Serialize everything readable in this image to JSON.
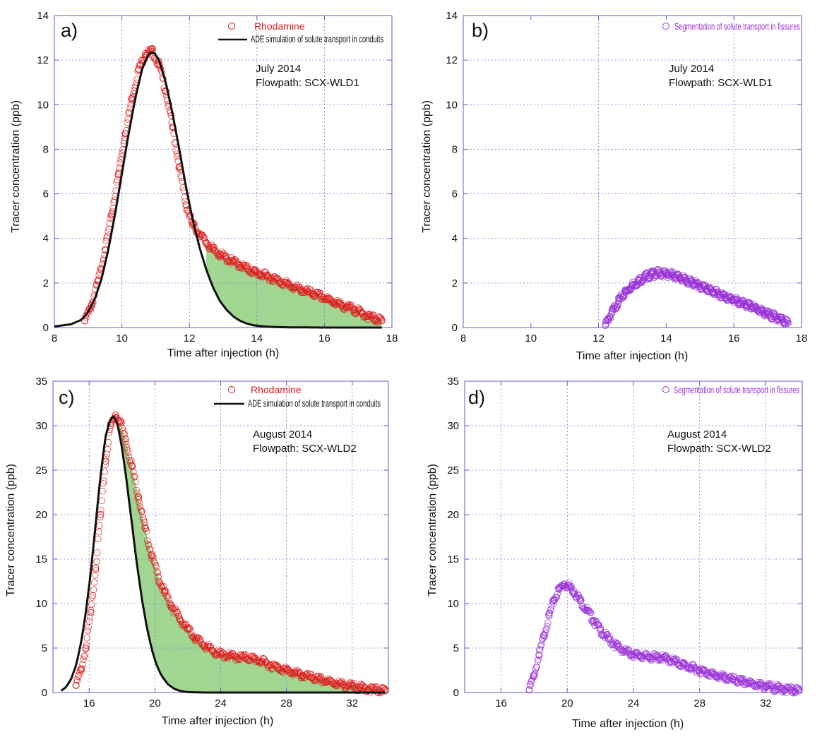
{
  "figure": {
    "width": 1164,
    "height": 1044
  },
  "chart_data": [
    {
      "id": "a",
      "panel_label": "a)",
      "type": "scatter",
      "xlabel": "Time after injection (h)",
      "ylabel": "Tracer concentration (ppb)",
      "xlim": [
        8,
        18
      ],
      "ylim": [
        0,
        14
      ],
      "xticks": [
        8,
        10,
        12,
        14,
        16,
        18
      ],
      "yticks": [
        0,
        2,
        4,
        6,
        8,
        10,
        12,
        14
      ],
      "xgrid": [
        10,
        12,
        14,
        16
      ],
      "ygrid": [
        2,
        4,
        6,
        8,
        10,
        12
      ],
      "grid": true,
      "annotation": [
        "July 2014",
        "Flowpath: SCX-WLD1"
      ],
      "legend_position": "top-right",
      "series": [
        {
          "name": "Rhodamine",
          "kind": "markers",
          "marker": "circle",
          "color": "#dd1c1c",
          "x": [
            8.9,
            9.1,
            9.3,
            9.5,
            9.7,
            9.9,
            10.1,
            10.3,
            10.5,
            10.7,
            10.9,
            11.1,
            11.3,
            11.5,
            11.7,
            11.9,
            12.1,
            12.3,
            12.5,
            12.7,
            12.9,
            13.1,
            13.3,
            13.5,
            13.7,
            13.9,
            14.1,
            14.3,
            14.5,
            14.7,
            14.9,
            15.1,
            15.3,
            15.5,
            15.7,
            15.9,
            16.1,
            16.3,
            16.5,
            16.7,
            16.9,
            17.1,
            17.3,
            17.5,
            17.7
          ],
          "y": [
            0.3,
            1.0,
            2.1,
            3.5,
            5.1,
            6.9,
            8.7,
            10.3,
            11.6,
            12.3,
            12.4,
            11.8,
            10.6,
            9.0,
            7.2,
            5.5,
            4.6,
            4.2,
            3.8,
            3.5,
            3.3,
            3.1,
            2.95,
            2.8,
            2.65,
            2.5,
            2.4,
            2.3,
            2.2,
            2.05,
            1.95,
            1.8,
            1.7,
            1.6,
            1.5,
            1.4,
            1.25,
            1.15,
            1.0,
            0.9,
            0.8,
            0.65,
            0.5,
            0.4,
            0.3
          ]
        },
        {
          "name": "ADE simulation of solute transport in conduits",
          "kind": "line",
          "color": "#111111",
          "x": [
            8.0,
            8.5,
            8.8,
            9.0,
            9.2,
            9.4,
            9.6,
            9.8,
            10.0,
            10.2,
            10.4,
            10.6,
            10.8,
            10.95,
            11.1,
            11.3,
            11.5,
            11.7,
            11.9,
            12.1,
            12.3,
            12.5,
            12.7,
            12.9,
            13.1,
            13.3,
            13.5,
            13.7,
            13.9,
            14.2,
            14.6,
            15.0,
            16.0,
            17.0,
            17.7
          ],
          "y": [
            0.05,
            0.15,
            0.35,
            0.7,
            1.3,
            2.2,
            3.5,
            5.1,
            6.9,
            8.7,
            10.3,
            11.6,
            12.3,
            12.35,
            12.0,
            11.0,
            9.6,
            8.0,
            6.3,
            4.8,
            3.6,
            2.6,
            1.8,
            1.2,
            0.8,
            0.5,
            0.3,
            0.18,
            0.1,
            0.05,
            0.02,
            0.01,
            0.0,
            0.0,
            0.0
          ]
        }
      ],
      "shaded_region": {
        "between": [
          "Rhodamine",
          "ADE simulation of solute transport in conduits"
        ],
        "x_from": 12.5,
        "x_to": 17.7,
        "color": "#88cc77"
      }
    },
    {
      "id": "b",
      "panel_label": "b)",
      "type": "scatter",
      "xlabel": "Time after injection (h)",
      "ylabel": "Tracer concentration (ppb)",
      "xlim": [
        8,
        18
      ],
      "ylim": [
        0,
        14
      ],
      "xticks": [
        8,
        10,
        12,
        14,
        16,
        18
      ],
      "yticks": [
        0,
        2,
        4,
        6,
        8,
        10,
        12,
        14
      ],
      "xgrid": [
        12,
        16
      ],
      "ygrid": [
        2,
        4,
        6,
        8,
        10,
        12
      ],
      "grid": true,
      "annotation": [
        "July 2014",
        "Flowpath: SCX-WLD1"
      ],
      "legend_position": "top-right",
      "series": [
        {
          "name": "Segmentation of solute transport in fissures",
          "kind": "markers",
          "marker": "circle",
          "color": "#9a33d6",
          "x": [
            12.2,
            12.4,
            12.6,
            12.8,
            13.0,
            13.2,
            13.4,
            13.6,
            13.8,
            14.0,
            14.2,
            14.4,
            14.6,
            14.8,
            15.0,
            15.2,
            15.4,
            15.6,
            15.8,
            16.0,
            16.2,
            16.4,
            16.6,
            16.8,
            17.0,
            17.2,
            17.4,
            17.6
          ],
          "y": [
            0.1,
            0.7,
            1.2,
            1.6,
            1.9,
            2.1,
            2.3,
            2.4,
            2.45,
            2.4,
            2.35,
            2.25,
            2.1,
            2.0,
            1.85,
            1.75,
            1.6,
            1.5,
            1.35,
            1.25,
            1.1,
            1.0,
            0.9,
            0.75,
            0.6,
            0.5,
            0.35,
            0.2
          ]
        }
      ]
    },
    {
      "id": "c",
      "panel_label": "c)",
      "type": "scatter",
      "xlabel": "Time after injection (h)",
      "ylabel": "Tracer concentration (ppb)",
      "xlim": [
        13.8,
        34.2
      ],
      "ylim": [
        0,
        35
      ],
      "xticks": [
        16,
        20,
        24,
        28,
        32
      ],
      "yticks": [
        0,
        5,
        10,
        15,
        20,
        25,
        30,
        35
      ],
      "xgrid": [
        16,
        20,
        24,
        28,
        32
      ],
      "ygrid": [
        5,
        10,
        15,
        20,
        25,
        30
      ],
      "grid": true,
      "annotation": [
        "August 2014",
        "Flowpath: SCX-WLD2"
      ],
      "legend_position": "top-right",
      "series": [
        {
          "name": "Rhodamine",
          "kind": "markers",
          "marker": "circle",
          "color": "#dd1c1c",
          "x": [
            15.2,
            15.5,
            15.8,
            16.1,
            16.4,
            16.7,
            17.0,
            17.3,
            17.6,
            17.9,
            18.2,
            18.6,
            19.0,
            19.4,
            19.8,
            20.2,
            20.6,
            21.0,
            21.5,
            22.0,
            22.5,
            23.0,
            23.5,
            24.0,
            24.5,
            25.0,
            25.5,
            26.0,
            26.5,
            27.0,
            27.5,
            28.0,
            28.5,
            29.0,
            29.5,
            30.0,
            30.5,
            31.0,
            31.5,
            32.0,
            32.5,
            33.0,
            33.5,
            34.0
          ],
          "y": [
            0.8,
            2.5,
            5.0,
            9.0,
            14.0,
            20.0,
            26.0,
            30.0,
            31.2,
            30.5,
            28.5,
            25.5,
            22.0,
            18.5,
            15.5,
            13.0,
            11.2,
            9.8,
            8.3,
            7.1,
            6.1,
            5.3,
            4.7,
            4.3,
            4.1,
            4.0,
            3.95,
            3.8,
            3.5,
            3.1,
            2.8,
            2.5,
            2.2,
            1.9,
            1.7,
            1.45,
            1.25,
            1.05,
            0.85,
            0.7,
            0.55,
            0.4,
            0.3,
            0.2
          ]
        },
        {
          "name": "ADE simulation of solute transport in conduits",
          "kind": "line",
          "color": "#111111",
          "x": [
            14.3,
            14.6,
            14.9,
            15.2,
            15.5,
            15.8,
            16.1,
            16.4,
            16.7,
            17.0,
            17.3,
            17.5,
            17.7,
            18.0,
            18.3,
            18.6,
            18.9,
            19.2,
            19.5,
            19.8,
            20.1,
            20.4,
            20.8,
            21.2,
            21.6,
            22.0,
            23.0,
            25.0,
            28.0,
            31.0,
            34.0
          ],
          "y": [
            0.2,
            0.6,
            1.5,
            3.0,
            5.5,
            9.0,
            13.5,
            19.0,
            24.5,
            28.8,
            30.8,
            31.0,
            30.4,
            27.5,
            23.5,
            19.0,
            14.5,
            10.6,
            7.4,
            4.9,
            3.1,
            1.9,
            0.9,
            0.4,
            0.15,
            0.05,
            0.0,
            0.0,
            0.0,
            0.0,
            0.0
          ]
        }
      ],
      "shaded_region": {
        "between": [
          "Rhodamine",
          "ADE simulation of solute transport in conduits"
        ],
        "x_from": 17.9,
        "x_to": 34.0,
        "color": "#88cc77"
      }
    },
    {
      "id": "d",
      "panel_label": "d)",
      "type": "scatter",
      "xlabel": "Time after injection (h)",
      "ylabel": "Tracer concentration (ppb)",
      "xlim": [
        13.8,
        34.2
      ],
      "ylim": [
        0,
        35
      ],
      "xticks": [
        16,
        20,
        24,
        28,
        32
      ],
      "yticks": [
        0,
        5,
        10,
        15,
        20,
        25,
        30,
        35
      ],
      "xgrid": [
        16,
        20,
        24,
        28,
        32
      ],
      "ygrid": [
        5,
        10,
        15,
        20,
        25,
        30
      ],
      "grid": true,
      "annotation": [
        "August 2014",
        "Flowpath: SCX-WLD2"
      ],
      "legend_position": "top-right",
      "series": [
        {
          "name": "Segmentation of solute transport in fissures",
          "kind": "markers",
          "marker": "circle",
          "color": "#9a33d6",
          "x": [
            17.7,
            18.0,
            18.3,
            18.6,
            18.9,
            19.2,
            19.5,
            19.8,
            20.1,
            20.4,
            20.8,
            21.2,
            21.6,
            22.0,
            22.5,
            23.0,
            23.5,
            24.0,
            24.5,
            25.0,
            25.5,
            26.0,
            26.5,
            27.0,
            27.5,
            28.0,
            28.5,
            29.0,
            29.5,
            30.0,
            30.5,
            31.0,
            31.5,
            32.0,
            32.5,
            33.0,
            33.5,
            34.0
          ],
          "y": [
            0.3,
            2.0,
            4.2,
            6.5,
            8.6,
            10.4,
            11.6,
            12.2,
            12.0,
            11.4,
            10.3,
            9.2,
            8.1,
            7.0,
            6.0,
            5.2,
            4.6,
            4.3,
            4.1,
            4.0,
            3.95,
            3.8,
            3.5,
            3.1,
            2.8,
            2.5,
            2.2,
            1.9,
            1.7,
            1.45,
            1.25,
            1.05,
            0.85,
            0.7,
            0.55,
            0.4,
            0.3,
            0.2
          ]
        }
      ]
    }
  ]
}
